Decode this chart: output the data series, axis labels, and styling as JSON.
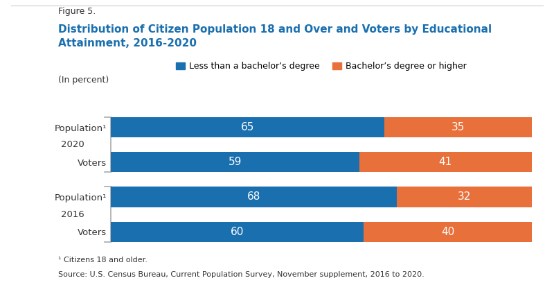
{
  "figure_label": "Figure 5.",
  "title_line1": "Distribution of Citizen Population 18 and Over and Voters by Educational",
  "title_line2": "Attainment, 2016-2020",
  "subtitle": "(In percent)",
  "legend_labels": [
    "Less than a bachelor’s degree",
    "Bachelor’s degree or higher"
  ],
  "legend_colors": [
    "#1a6faf",
    "#e8703a"
  ],
  "bar_color_blue": "#1a6faf",
  "bar_color_orange": "#e8703a",
  "rows": [
    {
      "label": "Population¹",
      "year_group": "2020",
      "blue": 65,
      "orange": 35
    },
    {
      "label": "Voters",
      "year_group": "2020",
      "blue": 59,
      "orange": 41
    },
    {
      "label": "Population¹",
      "year_group": "2016",
      "blue": 68,
      "orange": 32
    },
    {
      "label": "Voters",
      "year_group": "2016",
      "blue": 60,
      "orange": 40
    }
  ],
  "group_y": [
    {
      "label": "2020",
      "ytop": 3,
      "ybottom": 2
    },
    {
      "label": "2016",
      "ytop": 1,
      "ybottom": 0
    }
  ],
  "footnote1": "¹ Citizens 18 and older.",
  "footnote2": "Source: U.S. Census Bureau, Current Population Survey, November supplement, 2016 to 2020.",
  "bg_color": "#ffffff",
  "text_color_dark": "#333333",
  "title_color": "#1a6faf",
  "bar_height": 0.58,
  "bar_label_fontsize": 11,
  "row_label_fontsize": 9.5,
  "year_label_fontsize": 9.5
}
